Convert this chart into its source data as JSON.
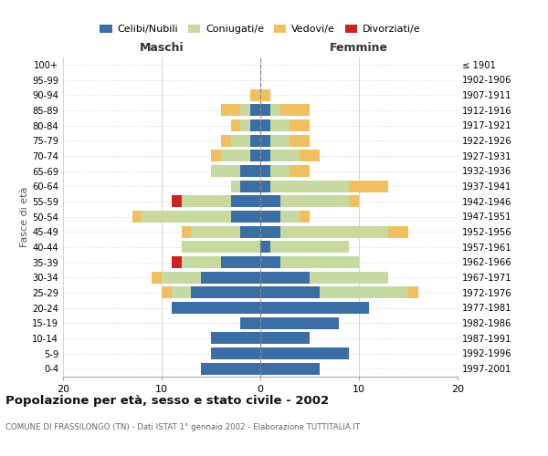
{
  "age_groups": [
    "0-4",
    "5-9",
    "10-14",
    "15-19",
    "20-24",
    "25-29",
    "30-34",
    "35-39",
    "40-44",
    "45-49",
    "50-54",
    "55-59",
    "60-64",
    "65-69",
    "70-74",
    "75-79",
    "80-84",
    "85-89",
    "90-94",
    "95-99",
    "100+"
  ],
  "birth_years": [
    "1997-2001",
    "1992-1996",
    "1987-1991",
    "1982-1986",
    "1977-1981",
    "1972-1976",
    "1967-1971",
    "1962-1966",
    "1957-1961",
    "1952-1956",
    "1947-1951",
    "1942-1946",
    "1937-1941",
    "1932-1936",
    "1927-1931",
    "1922-1926",
    "1917-1921",
    "1912-1916",
    "1907-1911",
    "1902-1906",
    "≤ 1901"
  ],
  "males": {
    "celibi": [
      6,
      5,
      5,
      2,
      9,
      7,
      6,
      4,
      0,
      2,
      3,
      3,
      2,
      2,
      1,
      1,
      1,
      1,
      0,
      0,
      0
    ],
    "coniugati": [
      0,
      0,
      0,
      0,
      0,
      2,
      4,
      4,
      8,
      5,
      9,
      5,
      1,
      3,
      3,
      2,
      1,
      1,
      0,
      0,
      0
    ],
    "vedovi": [
      0,
      0,
      0,
      0,
      0,
      1,
      1,
      0,
      0,
      1,
      1,
      0,
      0,
      0,
      1,
      1,
      1,
      2,
      1,
      0,
      0
    ],
    "divorziati": [
      0,
      0,
      0,
      0,
      0,
      0,
      0,
      1,
      0,
      0,
      0,
      1,
      0,
      0,
      0,
      0,
      0,
      0,
      0,
      0,
      0
    ]
  },
  "females": {
    "nubili": [
      6,
      9,
      5,
      8,
      11,
      6,
      5,
      2,
      1,
      2,
      2,
      2,
      1,
      1,
      1,
      1,
      1,
      1,
      0,
      0,
      0
    ],
    "coniugate": [
      0,
      0,
      0,
      0,
      0,
      9,
      8,
      8,
      8,
      11,
      2,
      7,
      8,
      2,
      3,
      2,
      2,
      1,
      0,
      0,
      0
    ],
    "vedove": [
      0,
      0,
      0,
      0,
      0,
      1,
      0,
      0,
      0,
      2,
      1,
      1,
      4,
      2,
      2,
      2,
      2,
      3,
      1,
      0,
      0
    ],
    "divorziate": [
      0,
      0,
      0,
      0,
      0,
      0,
      0,
      0,
      0,
      0,
      0,
      0,
      0,
      0,
      0,
      0,
      0,
      0,
      0,
      0,
      0
    ]
  },
  "color_celibi": "#3a6ea5",
  "color_coniugati": "#c5d9a0",
  "color_vedovi": "#f0c060",
  "color_divorziati": "#cc2222",
  "title": "Popolazione per età, sesso e stato civile - 2002",
  "subtitle": "COMUNE DI FRASSILONGO (TN) - Dati ISTAT 1° gennaio 2002 - Elaborazione TUTTITALIA.IT",
  "xlabel_left": "Maschi",
  "xlabel_right": "Femmine",
  "ylabel_left": "Fasce di età",
  "xlim": 20,
  "xticks": [
    -20,
    -10,
    0,
    10,
    20
  ],
  "bg_color": "#ffffff",
  "grid_color": "#cccccc"
}
